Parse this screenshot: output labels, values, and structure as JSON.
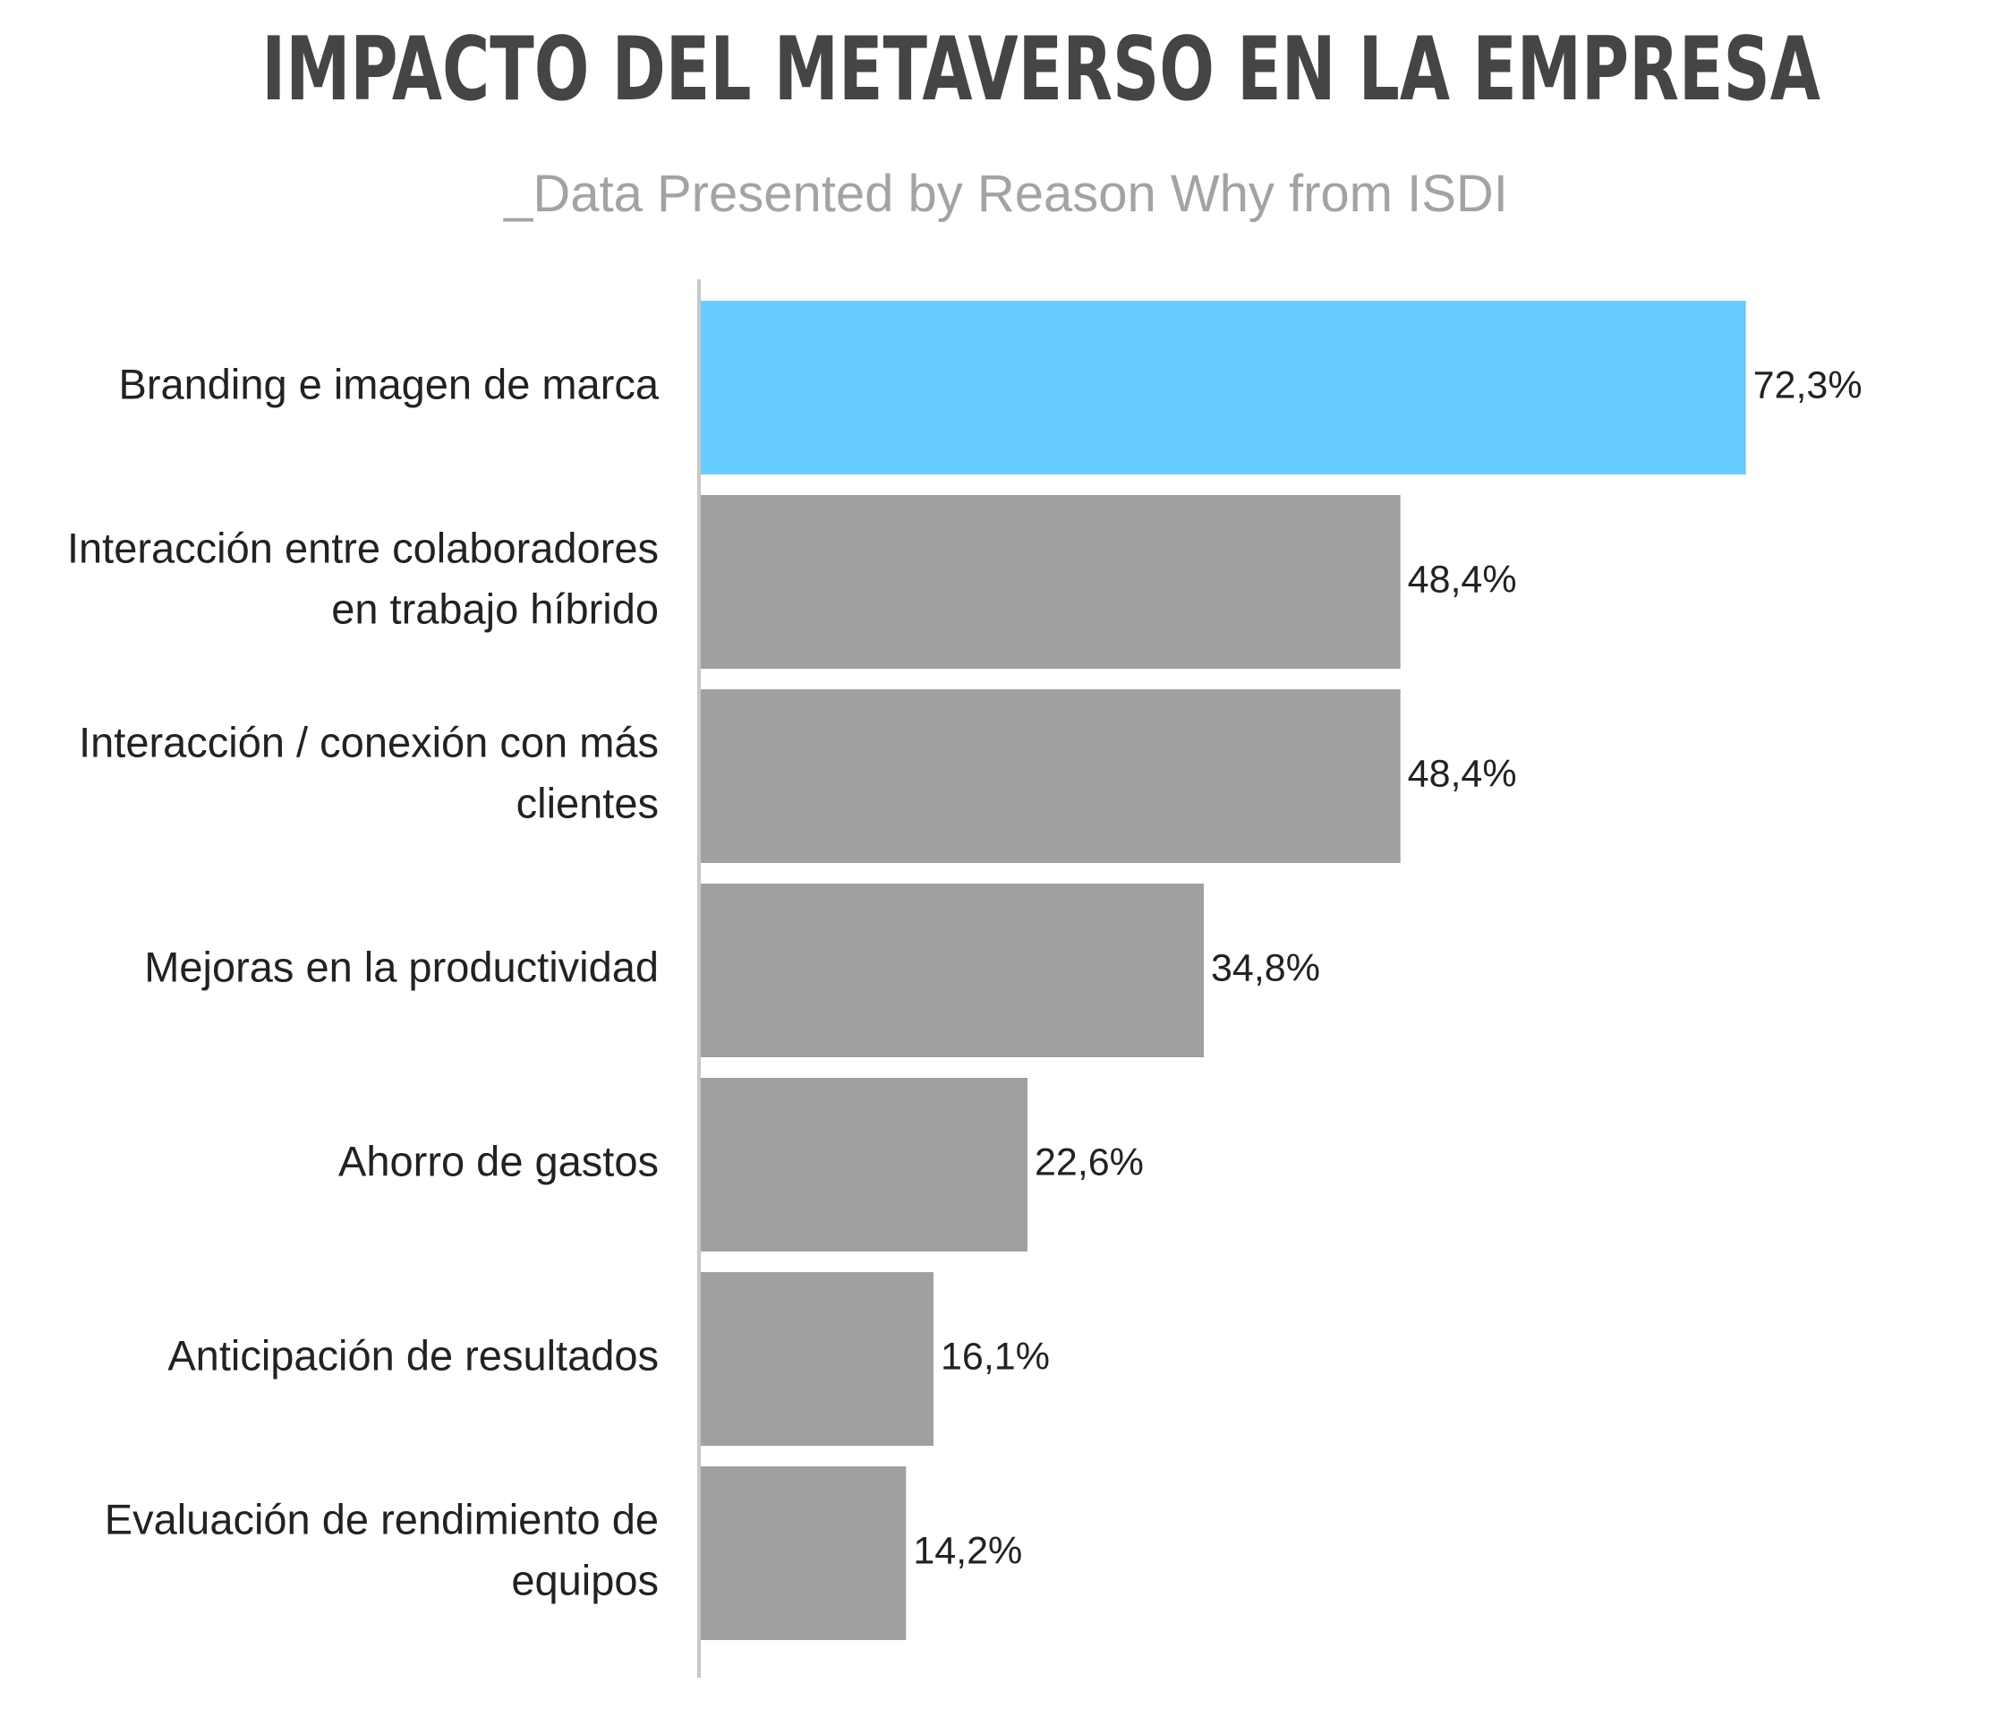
{
  "title": "IMPACTO DEL METAVERSO EN LA EMPRESA",
  "subtitle": "_Data Presented by Reason Why from ISDI",
  "colors": {
    "highlight": "#66CCFF",
    "bar": "#A0A0A0",
    "axis": "#C8C8C8",
    "title": "#454545",
    "subtitle": "#A3A3A3",
    "text": "#222222"
  },
  "chart_data": {
    "type": "bar",
    "orientation": "horizontal",
    "title": "IMPACTO DEL METAVERSO EN LA EMPRESA",
    "subtitle": "_Data Presented by Reason Why from ISDI",
    "categories": [
      [
        "Branding e imagen de marca"
      ],
      [
        "Interacción entre colaboradores",
        "en trabajo híbrido"
      ],
      [
        "Interacción / conexión con más",
        "clientes"
      ],
      [
        "Mejoras en la productividad"
      ],
      [
        "Ahorro de gastos"
      ],
      [
        "Anticipación de resultados"
      ],
      [
        "Evaluación de rendimiento de",
        "equipos"
      ]
    ],
    "values": [
      72.3,
      48.4,
      48.4,
      34.8,
      22.6,
      16.1,
      14.2
    ],
    "value_labels": [
      "72,3%",
      "48,4%",
      "48,4%",
      "34,8%",
      "22,6%",
      "16,1%",
      "14,2%"
    ],
    "highlight_index": 0,
    "xlim": [
      0,
      100
    ],
    "grid": false,
    "xlabel": "",
    "ylabel": ""
  }
}
